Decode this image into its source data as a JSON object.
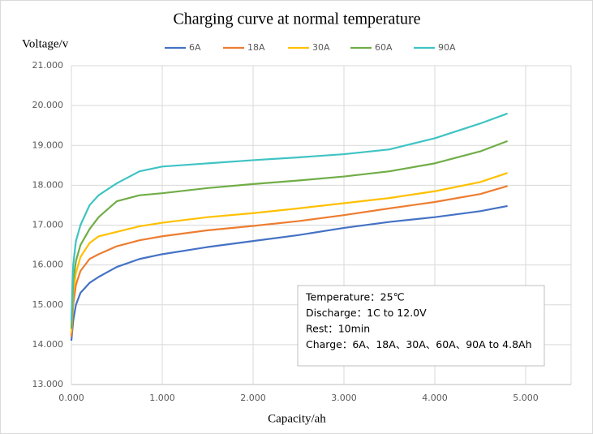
{
  "chart_data": {
    "type": "line",
    "title": "Charging curve at normal temperature",
    "y_label": "Voltage/v",
    "x_label": "Capacity/ah",
    "x": [
      0,
      0.02,
      0.05,
      0.1,
      0.2,
      0.3,
      0.5,
      0.75,
      1.0,
      1.5,
      2.0,
      2.5,
      3.0,
      3.5,
      4.0,
      4.5,
      4.8
    ],
    "series": [
      {
        "name": "6A",
        "color": "#4472c4",
        "values": [
          14.1,
          14.6,
          15.0,
          15.3,
          15.55,
          15.7,
          15.95,
          16.15,
          16.27,
          16.45,
          16.6,
          16.75,
          16.93,
          17.08,
          17.2,
          17.35,
          17.48
        ]
      },
      {
        "name": "18A",
        "color": "#ed7d31",
        "values": [
          14.2,
          15.0,
          15.5,
          15.85,
          16.15,
          16.27,
          16.47,
          16.62,
          16.72,
          16.87,
          16.98,
          17.1,
          17.25,
          17.42,
          17.58,
          17.78,
          17.98
        ]
      },
      {
        "name": "30A",
        "color": "#ffc000",
        "values": [
          14.3,
          15.3,
          15.8,
          16.2,
          16.55,
          16.72,
          16.83,
          16.97,
          17.06,
          17.2,
          17.3,
          17.42,
          17.55,
          17.68,
          17.85,
          18.08,
          18.31
        ]
      },
      {
        "name": "60A",
        "color": "#70ad47",
        "values": [
          14.4,
          15.6,
          16.1,
          16.5,
          16.9,
          17.2,
          17.6,
          17.75,
          17.8,
          17.93,
          18.03,
          18.12,
          18.22,
          18.35,
          18.55,
          18.85,
          19.11
        ]
      },
      {
        "name": "90A",
        "color": "#3fc3c3",
        "values": [
          14.6,
          16.0,
          16.6,
          17.0,
          17.5,
          17.75,
          18.05,
          18.35,
          18.47,
          18.55,
          18.63,
          18.7,
          18.78,
          18.9,
          19.18,
          19.55,
          19.8
        ]
      }
    ],
    "xlim": [
      0,
      5.5
    ],
    "xticks": [
      {
        "value": 0,
        "label": "0.000"
      },
      {
        "value": 1,
        "label": "1.000"
      },
      {
        "value": 2,
        "label": "2.000"
      },
      {
        "value": 3,
        "label": "3.000"
      },
      {
        "value": 4,
        "label": "4.000"
      },
      {
        "value": 5,
        "label": "5.000"
      }
    ],
    "ylim": [
      13,
      21
    ],
    "yticks": [
      {
        "value": 13,
        "label": "13.000"
      },
      {
        "value": 14,
        "label": "14.000"
      },
      {
        "value": 15,
        "label": "15.000"
      },
      {
        "value": 16,
        "label": "16.000"
      },
      {
        "value": 17,
        "label": "17.000"
      },
      {
        "value": 18,
        "label": "18.000"
      },
      {
        "value": 19,
        "label": "19.000"
      },
      {
        "value": 20,
        "label": "20.000"
      },
      {
        "value": 21,
        "label": "21.000"
      }
    ],
    "grid": true,
    "legend": "top",
    "annotation": [
      "Temperature：25℃",
      "Discharge：1C to 12.0V",
      "Rest：10min",
      "Charge：6A、18A、30A、60A、90A to 4.8Ah"
    ]
  }
}
